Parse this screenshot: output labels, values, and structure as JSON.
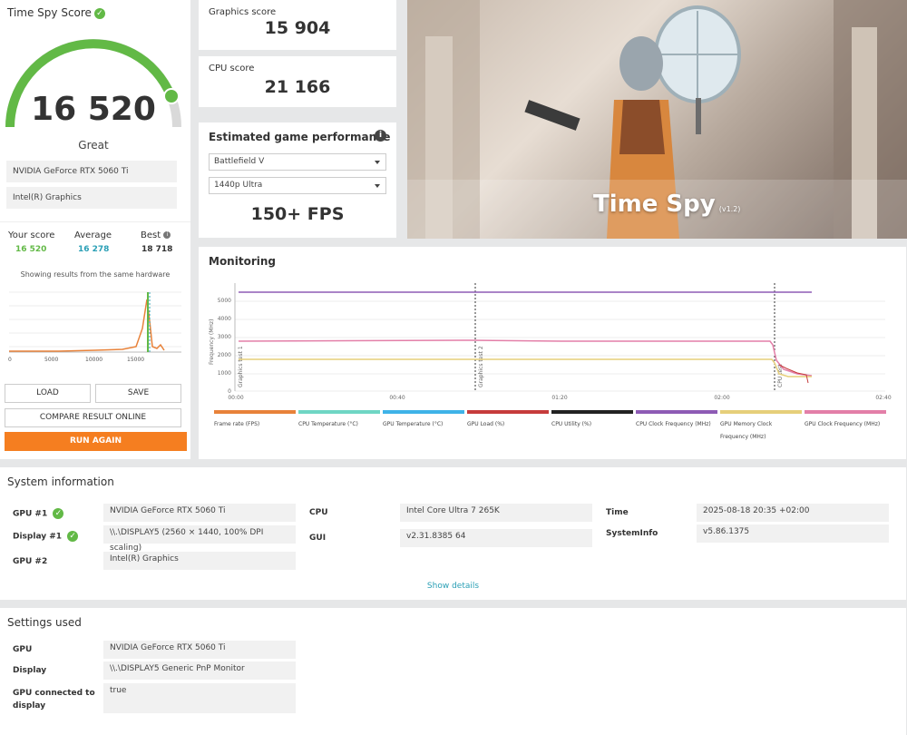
{
  "score": {
    "title": "Time Spy Score",
    "value": "16 520",
    "rating": "Great",
    "gpu_label": "NVIDIA GeForce RTX 5060 Ti",
    "igpu_label": "Intel(R) Graphics",
    "your_score_label": "Your score",
    "your_score": "16 520",
    "average_label": "Average",
    "average": "16 278",
    "best_label": "Best",
    "best": "18 718",
    "showing_text": "Showing results from the same hardware",
    "distribution_ticks": [
      "0",
      "5000",
      "10000",
      "15000"
    ],
    "load_label": "LOAD",
    "save_label": "SAVE",
    "compare_label": "COMPARE RESULT ONLINE",
    "run_again_label": "RUN AGAIN"
  },
  "graphics": {
    "label": "Graphics score",
    "value": "15 904"
  },
  "cpu": {
    "label": "CPU score",
    "value": "21 166"
  },
  "estimated": {
    "title": "Estimated game performance",
    "game": "Battlefield V",
    "preset": "1440p Ultra",
    "fps": "150+ FPS"
  },
  "hero": {
    "title": "Time Spy",
    "version": "(v1.2)"
  },
  "monitoring": {
    "title": "Monitoring",
    "y_axis_label": "Frequency (MHz)",
    "y_ticks": [
      "0",
      "1000",
      "2000",
      "3000",
      "4000",
      "5000"
    ],
    "x_ticks": [
      "00:00",
      "00:40",
      "01:20",
      "02:00",
      "02:40"
    ],
    "markers": [
      "Graphics test 1",
      "Graphics test 2",
      "CPU test"
    ],
    "legend": [
      {
        "label": "Frame rate (FPS)",
        "color": "#e8823a"
      },
      {
        "label": "CPU Temperature (°C)",
        "color": "#6fd6c4"
      },
      {
        "label": "GPU Temperature (°C)",
        "color": "#3fb3e8"
      },
      {
        "label": "GPU Load (%)",
        "color": "#c63c3c"
      },
      {
        "label": "CPU Utility (%)",
        "color": "#222222"
      },
      {
        "label": "CPU Clock Frequency (MHz)",
        "color": "#8e5bb5"
      },
      {
        "label": "GPU Memory Clock Frequency (MHz)",
        "color": "#e6cf7a"
      },
      {
        "label": "GPU Clock Frequency (MHz)",
        "color": "#e37fa8"
      }
    ]
  },
  "system_info": {
    "title": "System information",
    "gpu1_label": "GPU #1",
    "gpu1_value": "NVIDIA GeForce RTX 5060 Ti",
    "display1_label": "Display #1",
    "display1_value": "\\\\.\\DISPLAY5 (2560 × 1440, 100% DPI scaling)",
    "gpu2_label": "GPU #2",
    "gpu2_value": "Intel(R) Graphics",
    "cpu_label": "CPU",
    "cpu_value": "Intel Core Ultra 7 265K",
    "gui_label": "GUI",
    "gui_value": "v2.31.8385 64",
    "time_label": "Time",
    "time_value": "2025-08-18 20:35 +02:00",
    "sysinfo_label": "SystemInfo",
    "sysinfo_value": "v5.86.1375",
    "show_details": "Show details"
  },
  "settings": {
    "title": "Settings used",
    "gpu_label": "GPU",
    "gpu_value": "NVIDIA GeForce RTX 5060 Ti",
    "display_label": "Display",
    "display_value": "\\\\.\\DISPLAY5 Generic PnP Monitor",
    "gpu_connected_label": "GPU connected to display",
    "gpu_connected_value": "true"
  },
  "colors": {
    "accent_orange": "#f57e20",
    "score_green": "#62b946",
    "average_blue": "#2a9fb5",
    "link_teal": "#2a9fb5"
  }
}
